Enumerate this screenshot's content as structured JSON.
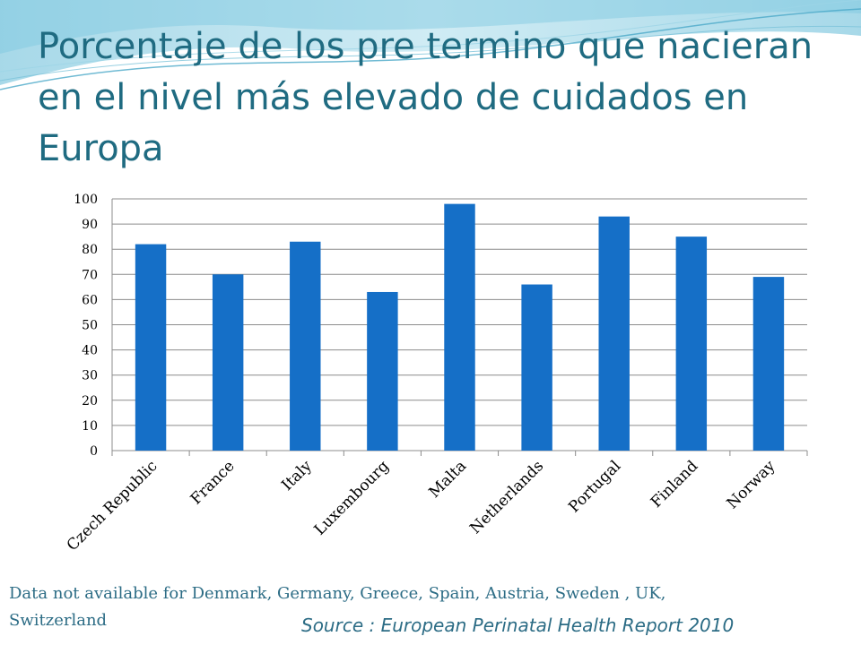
{
  "slide": {
    "title": "Porcentaje de los pre termino que nacieran en el nivel más elevado de cuidados en Europa",
    "note": "Data not available for Denmark, Germany,  Greece,  Spain,  Austria, Sweden , UK, Switzerland",
    "source": "Source : European Perinatal Health Report 2010",
    "accent_color": "#1F6B81",
    "bar_color": "#156FC7"
  },
  "chart_data": {
    "type": "bar",
    "title": "",
    "xlabel": "",
    "ylabel": "",
    "categories": [
      "Czech Republic",
      "France",
      "Italy",
      "Luxembourg",
      "Malta",
      "Netherlands",
      "Portugal",
      "Finland",
      "Norway"
    ],
    "values": [
      82,
      70,
      83,
      63,
      98,
      66,
      93,
      85,
      69
    ],
    "ylim": [
      0,
      100
    ],
    "yticks": [
      "0",
      "10",
      "20",
      "30",
      "40",
      "50",
      "60",
      "70",
      "80",
      "90",
      "100"
    ],
    "grid": true,
    "legend": "none"
  }
}
